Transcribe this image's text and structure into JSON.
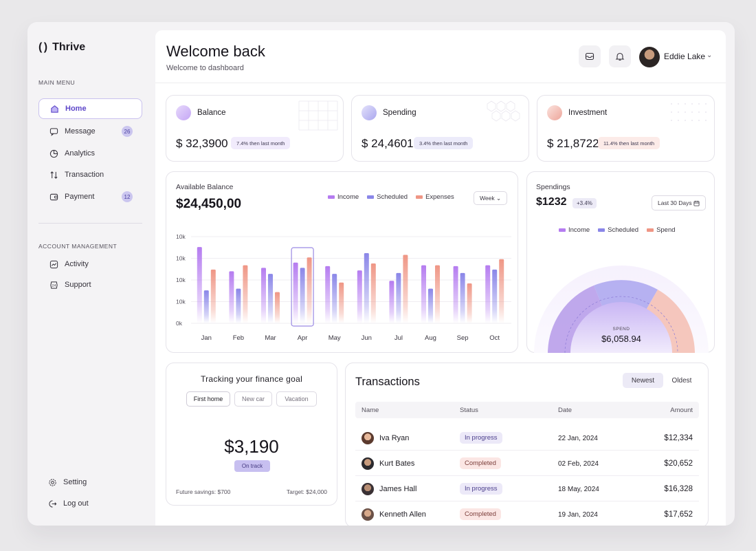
{
  "app": {
    "name": "Thrive"
  },
  "sidebar": {
    "main_menu_title": "MAIN MENU",
    "main_items": [
      {
        "label": "Home",
        "badge": ""
      },
      {
        "label": "Message",
        "badge": "26"
      },
      {
        "label": "Analytics",
        "badge": ""
      },
      {
        "label": "Transaction",
        "badge": ""
      },
      {
        "label": "Payment",
        "badge": "12"
      }
    ],
    "account_title": "ACCOUNT MANAGEMENT",
    "account_items": [
      {
        "label": "Activity"
      },
      {
        "label": "Support"
      }
    ],
    "bottom_items": [
      {
        "label": "Setting"
      },
      {
        "label": "Log out"
      }
    ]
  },
  "header": {
    "title": "Welcome back",
    "subtitle": "Welcome to dashboard",
    "user_name": "Eddie Lake"
  },
  "stats": [
    {
      "label": "Balance",
      "value": "$ 32,3900",
      "change": "7.4% then last month",
      "accent": "#b28cf0"
    },
    {
      "label": "Spending",
      "value": "$ 24,4601",
      "change": "3.4% then last month",
      "accent": "#9a97e8"
    },
    {
      "label": "Investment",
      "value": "$ 21,8722",
      "change": "11.4% then last month",
      "accent": "#e9a093"
    }
  ],
  "available_balance": {
    "label": "Available Balance",
    "value": "$24,450,00",
    "period": "Week",
    "legend": [
      "Income",
      "Scheduled",
      "Expenses"
    ]
  },
  "chart_data": {
    "type": "bar",
    "categories": [
      "Jan",
      "Feb",
      "Mar",
      "Apr",
      "May",
      "Jun",
      "Jul",
      "Aug",
      "Sep",
      "Oct"
    ],
    "y_tick_labels": [
      "10k",
      "10k",
      "10k",
      "10k",
      "0k"
    ],
    "series": [
      {
        "name": "Income",
        "values": [
          0.88,
          0.6,
          0.64,
          0.7,
          0.66,
          0.61,
          0.49,
          0.67,
          0.66,
          0.67
        ]
      },
      {
        "name": "Scheduled",
        "values": [
          0.38,
          0.4,
          0.57,
          0.64,
          0.57,
          0.81,
          0.58,
          0.4,
          0.58,
          0.62
        ]
      },
      {
        "name": "Expenses",
        "values": [
          0.62,
          0.67,
          0.36,
          0.76,
          0.47,
          0.69,
          0.79,
          0.67,
          0.46,
          0.74
        ]
      }
    ],
    "ylim": [
      0,
      1
    ],
    "highlighted": "Apr",
    "colors": {
      "Income": "#b57cf0",
      "Scheduled": "#8a86e8",
      "Expenses": "#ef9685"
    }
  },
  "spendings": {
    "label": "Spendings",
    "value": "$1232",
    "change": "+3.4%",
    "range": "Last 30 Days",
    "legend": [
      "Income",
      "Scheduled",
      "Spend"
    ],
    "center_label": "SPEND",
    "center_value": "$6,058.94"
  },
  "goal": {
    "title": "Tracking your finance goal",
    "tabs": [
      "First home",
      "New car",
      "Vacation"
    ],
    "amount": "$3,190",
    "status": "On track",
    "future": "Future savings: $700",
    "target": "Target: $24,000"
  },
  "transactions": {
    "title": "Transactions",
    "sort": [
      "Newest",
      "Oldest"
    ],
    "columns": [
      "Name",
      "Status",
      "Date",
      "Amount"
    ],
    "rows": [
      {
        "name": "Iva Ryan",
        "status": "In progress",
        "date": "22 Jan, 2024",
        "amount": "$12,334"
      },
      {
        "name": "Kurt Bates",
        "status": "Completed",
        "date": "02 Feb, 2024",
        "amount": "$20,652"
      },
      {
        "name": "James Hall",
        "status": "In progress",
        "date": "18 May, 2024",
        "amount": "$16,328"
      },
      {
        "name": "Kenneth Allen",
        "status": "Completed",
        "date": "19 Jan, 2024",
        "amount": "$17,652"
      }
    ]
  }
}
